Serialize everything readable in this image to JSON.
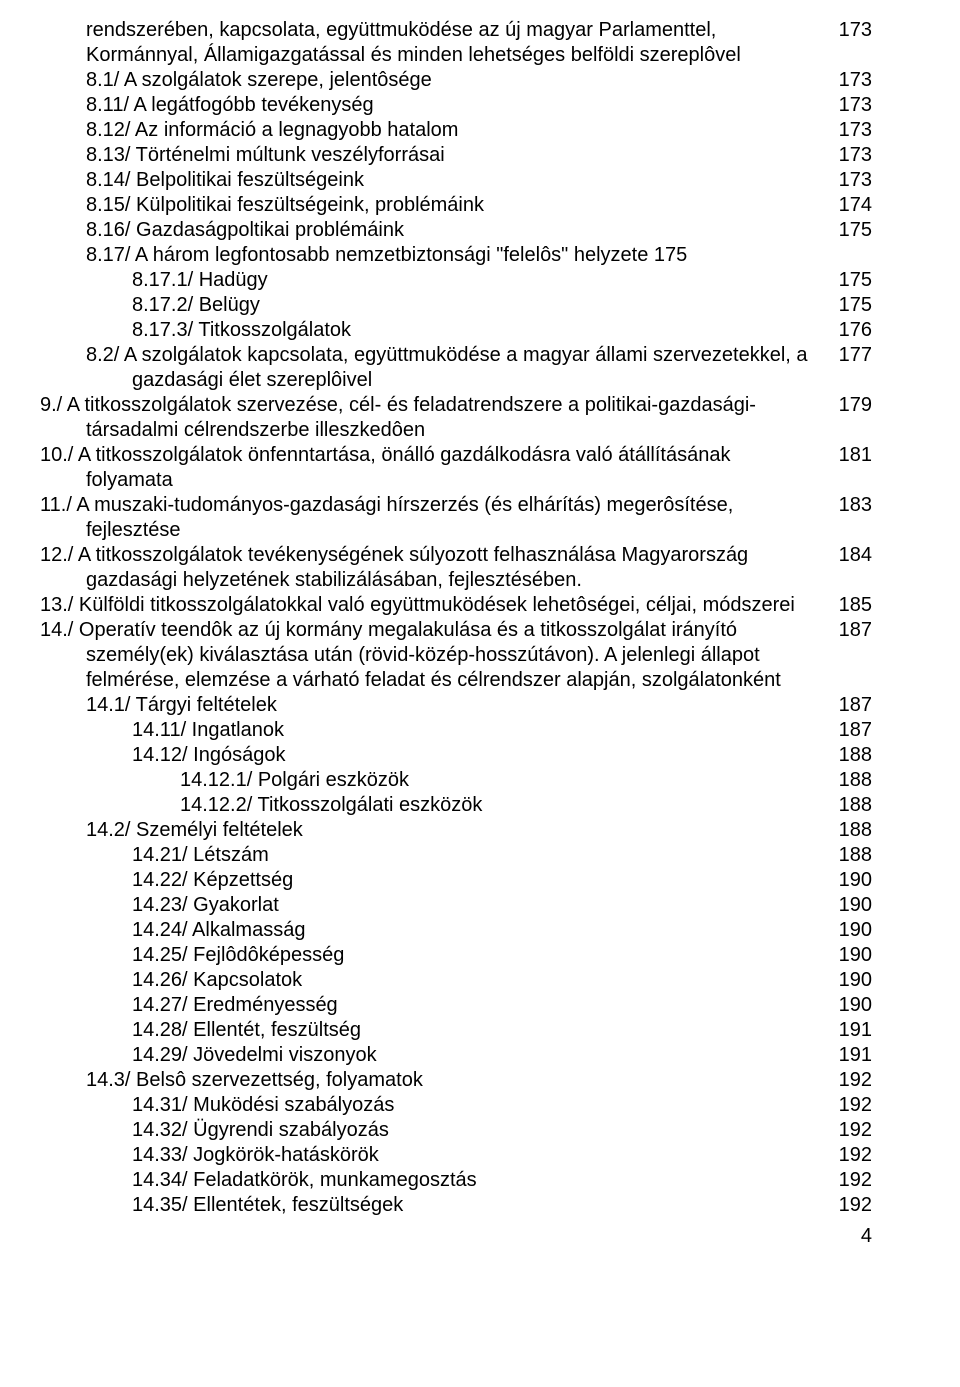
{
  "page_number": "4",
  "lines": [
    {
      "lv": 1,
      "text": "rendszerében, kapcsolata, együttmuködése az új magyar Parlamenttel, Kormánnyal, Államigazgatással és minden lehetséges belföldi szereplôvel",
      "page": "173"
    },
    {
      "lv": 1,
      "text": "8.1/  A szolgálatok szerepe, jelentôsége",
      "page": "173"
    },
    {
      "lv": 1,
      "text": "8.11/ A legátfogóbb tevékenység",
      "page": "173"
    },
    {
      "lv": 1,
      "text": "8.12/ Az információ a legnagyobb hatalom",
      "page": "173"
    },
    {
      "lv": 1,
      "text": "8.13/ Történelmi múltunk veszélyforrásai",
      "page": "173"
    },
    {
      "lv": 1,
      "text": "8.14/ Belpolitikai feszültségeink",
      "page": "173"
    },
    {
      "lv": 1,
      "text": "8.15/ Külpolitikai feszültségeink, problémáink",
      "page": "174"
    },
    {
      "lv": 1,
      "text": "8.16/ Gazdaságpoltikai problémáink",
      "page": "175"
    },
    {
      "lv": 1,
      "text": "8.17/ A három legfontosabb nemzetbiztonsági \"felelôs\" helyzete",
      "page": "175",
      "inline_page": true
    },
    {
      "lv": 2,
      "text": "8.17.1/ Hadügy",
      "page": "175"
    },
    {
      "lv": 2,
      "text": "8.17.2/ Belügy",
      "page": "175"
    },
    {
      "lv": 2,
      "text": "8.17.3/ Titkosszolgálatok",
      "page": "176"
    },
    {
      "lv": 1,
      "text": "8.2/  A szolgálatok kapcsolata, együttmuködése a magyar állami szervezetekkel, a gazdasági élet szereplôivel",
      "page": "177",
      "hang": true
    },
    {
      "lv": 0,
      "text": "9./  A titkosszolgálatok szervezése, cél- és feladatrendszere a politikai-gazdasági-társadalmi célrendszerbe illeszkedôen",
      "page": "179",
      "hang": true
    },
    {
      "lv": 0,
      "text": "10./ A titkosszolgálatok önfenntartása, önálló gazdálkodásra való átállításának folyamata",
      "page": "181",
      "hang": true
    },
    {
      "lv": 0,
      "text": "11./ A muszaki-tudományos-gazdasági hírszerzés (és elhárítás) megerôsítése, fejlesztése",
      "page": "183",
      "hang": true
    },
    {
      "lv": 0,
      "text": "12./ A titkosszolgálatok tevékenységének súlyozott felhasználása Magyarország gazdasági helyzetének stabilizálásában, fejlesztésében.",
      "page": "184",
      "hang": true
    },
    {
      "lv": 0,
      "text": "13./ Külföldi titkosszolgálatokkal való együttmuködések lehetôségei, céljai, módszerei",
      "page": "185",
      "hang": true
    },
    {
      "lv": 0,
      "text": "14./ Operatív teendôk az új kormány megalakulása és a titkosszolgálat irányító személy(ek) kiválasztása után (rövid-közép-hosszútávon). A jelenlegi állapot felmérése, elemzése a várható feladat és célrendszer alapján, szolgálatonként",
      "page": "187",
      "hang": true
    },
    {
      "lv": 1,
      "text": "14.1/ Tárgyi feltételek",
      "page": "187"
    },
    {
      "lv": 2,
      "text": "14.11/ Ingatlanok",
      "page": "187"
    },
    {
      "lv": 2,
      "text": "14.12/ Ingóságok",
      "page": "188"
    },
    {
      "lv": 3,
      "text": "14.12.1/ Polgári eszközök",
      "page": "188"
    },
    {
      "lv": 3,
      "text": "14.12.2/ Titkosszolgálati eszközök",
      "page": "188"
    },
    {
      "lv": 1,
      "text": "14.2/ Személyi feltételek",
      "page": "188"
    },
    {
      "lv": 2,
      "text": "14.21/ Létszám",
      "page": "188"
    },
    {
      "lv": 2,
      "text": "14.22/ Képzettség",
      "page": "190"
    },
    {
      "lv": 2,
      "text": "14.23/ Gyakorlat",
      "page": "190"
    },
    {
      "lv": 2,
      "text": "14.24/ Alkalmasság",
      "page": "190"
    },
    {
      "lv": 2,
      "text": "14.25/ Fejlôdôképesség",
      "page": "190"
    },
    {
      "lv": 2,
      "text": "14.26/ Kapcsolatok",
      "page": "190"
    },
    {
      "lv": 2,
      "text": "14.27/ Eredményesség",
      "page": "190"
    },
    {
      "lv": 2,
      "text": "14.28/ Ellentét, feszültség",
      "page": "191"
    },
    {
      "lv": 2,
      "text": "14.29/ Jövedelmi viszonyok",
      "page": "191"
    },
    {
      "lv": 1,
      "text": "14.3/ Belsô szervezettség, folyamatok",
      "page": "192"
    },
    {
      "lv": 2,
      "text": "14.31/ Muködési szabályozás",
      "page": "192"
    },
    {
      "lv": 2,
      "text": "14.32/ Ügyrendi szabályozás",
      "page": "192"
    },
    {
      "lv": 2,
      "text": "14.33/ Jogkörök-hatáskörök",
      "page": "192"
    },
    {
      "lv": 2,
      "text": "14.34/ Feladatkörök, munkamegosztás",
      "page": "192"
    },
    {
      "lv": 2,
      "text": "14.35/ Ellentétek, feszültségek",
      "page": "192"
    }
  ]
}
